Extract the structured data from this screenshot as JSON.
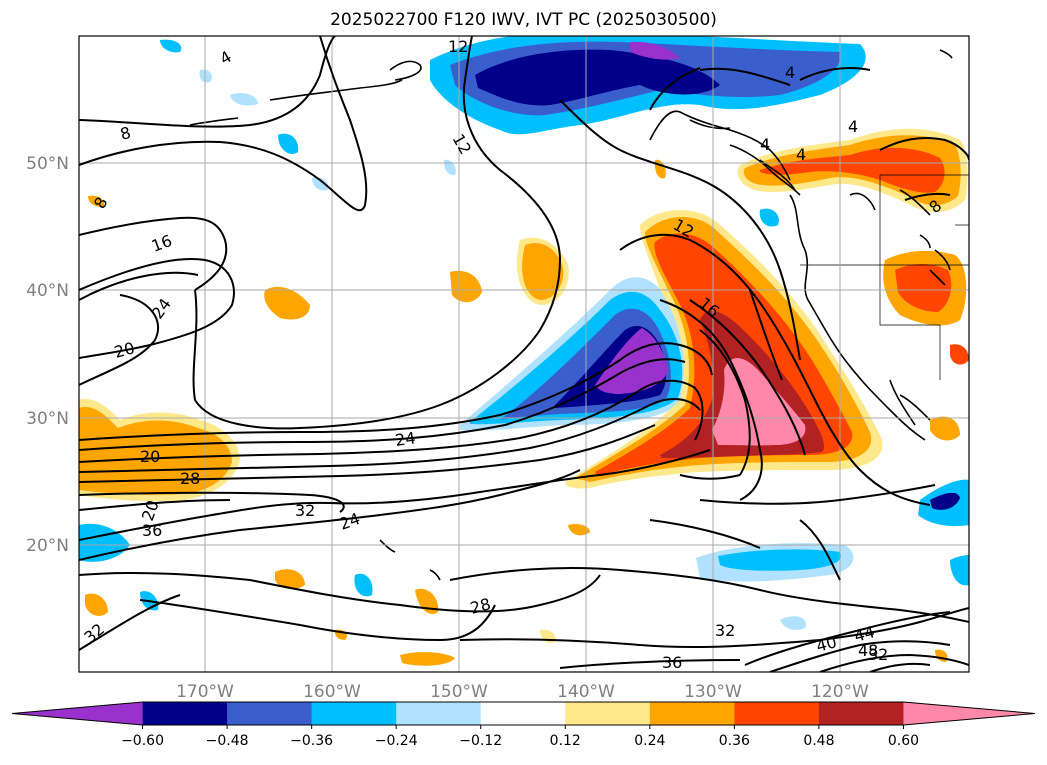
{
  "title": "2025022700 F120 IWV, IVT PC (2025030500)",
  "lat_labels": [
    "50°N",
    "40°N",
    "30°N",
    "20°N"
  ],
  "lon_labels": [
    "170°W",
    "160°W",
    "150°W",
    "140°W",
    "130°W",
    "120°W"
  ],
  "colorbar": {
    "ticks": [
      "−0.60",
      "−0.48",
      "−0.36",
      "−0.24",
      "−0.12",
      "0.12",
      "0.24",
      "0.36",
      "0.48",
      "0.60"
    ],
    "colors": [
      "#9932cc",
      "#00008b",
      "#3a5fcd",
      "#00bfff",
      "#b0e2ff",
      "#ffffff",
      "#ffe88a",
      "#ffa500",
      "#ff4500",
      "#b22222",
      "#ff88aa"
    ]
  },
  "contour_labels": [
    "4",
    "12",
    "12",
    "8",
    "8",
    "16",
    "24",
    "20",
    "20",
    "28",
    "24",
    "32",
    "24",
    "20",
    "36",
    "28",
    "32",
    "36",
    "40",
    "44",
    "48",
    "32",
    "32",
    "16",
    "12",
    "4",
    "4",
    "4",
    "8",
    "4"
  ]
}
